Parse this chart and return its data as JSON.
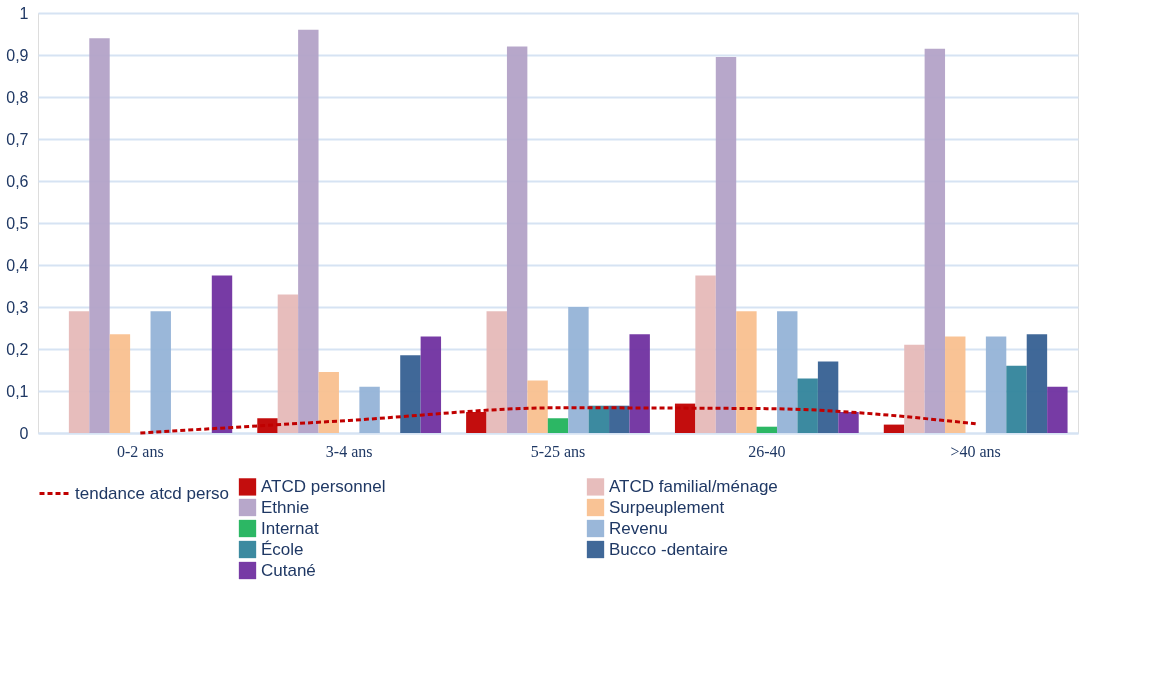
{
  "chart_data": {
    "type": "bar",
    "categories": [
      "0-2 ans",
      "3-4 ans",
      "5-25 ans",
      "26-40",
      ">40 ans"
    ],
    "series": [
      {
        "name": "ATCD personnel",
        "color": "#c00000",
        "values": [
          0,
          0.035,
          0.05,
          0.07,
          0.02
        ]
      },
      {
        "name": "ATCD familial/ménage",
        "color": "#e6b9b8",
        "values": [
          0.29,
          0.33,
          0.29,
          0.375,
          0.21
        ]
      },
      {
        "name": "Ethnie",
        "color": "#b3a2c7",
        "values": [
          0.94,
          0.96,
          0.92,
          0.895,
          0.915
        ]
      },
      {
        "name": "Surpeuplement",
        "color": "#f9c08f",
        "values": [
          0.235,
          0.145,
          0.125,
          0.29,
          0.23
        ]
      },
      {
        "name": "Internat",
        "color": "#21b35c",
        "values": [
          0,
          0,
          0.035,
          0.015,
          0
        ]
      },
      {
        "name": "Revenu",
        "color": "#95b3d7",
        "values": [
          0.29,
          0.11,
          0.3,
          0.29,
          0.23
        ]
      },
      {
        "name": "École",
        "color": "#31849b",
        "values": [
          0,
          0,
          0.065,
          0.13,
          0.16
        ]
      },
      {
        "name": "Bucco -dentaire",
        "color": "#366092",
        "values": [
          0,
          0.185,
          0.065,
          0.17,
          0.235
        ]
      },
      {
        "name": "Cutané",
        "color": "#7030a0",
        "values": [
          0.375,
          0.23,
          0.235,
          0.05,
          0.11
        ]
      },
      {
        "name": "tendance atcd perso",
        "color": "#c00000",
        "type": "line",
        "line_style": "dashed",
        "values": [
          0,
          0.03,
          0.06,
          0.058,
          0.022
        ]
      }
    ],
    "ylim": [
      0,
      1
    ],
    "yticks": [
      0,
      {
        "value": 0.1,
        "label": "0,1"
      },
      {
        "value": 0.2,
        "label": "0,2"
      },
      {
        "value": 0.3,
        "label": "0,3"
      },
      {
        "value": 0.4,
        "label": "0,4"
      },
      {
        "value": 0.5,
        "label": "0,5"
      },
      {
        "value": 0.6,
        "label": "0,6"
      },
      {
        "value": 0.7,
        "label": "0,7"
      },
      {
        "value": 0.8,
        "label": "0,8"
      },
      {
        "value": 0.9,
        "label": "0,9"
      },
      1
    ],
    "grid": "y",
    "legend": "bottom"
  }
}
